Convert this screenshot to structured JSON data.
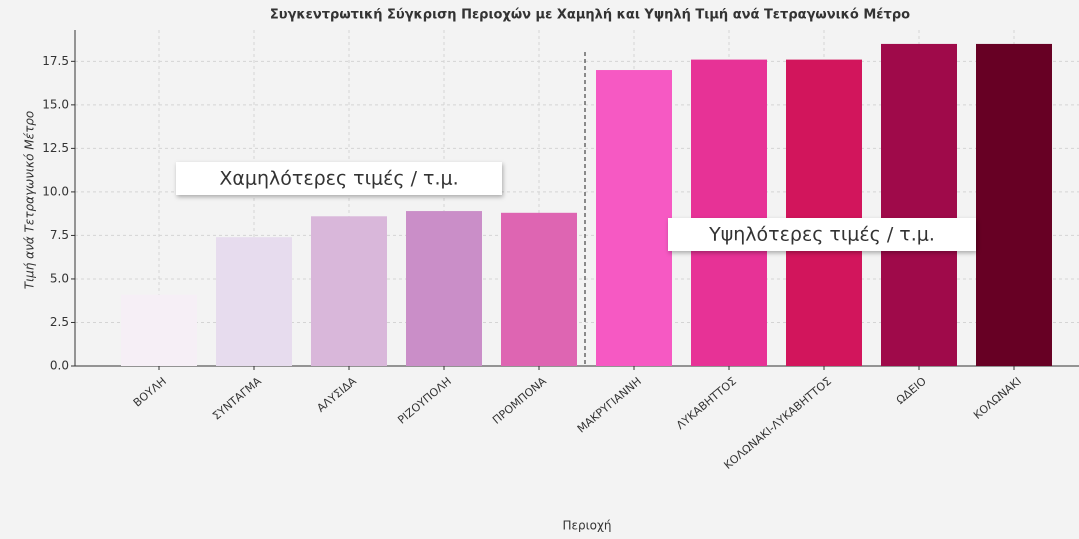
{
  "chart_data": {
    "type": "bar",
    "title": "Συγκεντρωτική Σύγκριση Περιοχών με Χαμηλή και Υψηλή Τιμή ανά Τετραγωνικό Μέτρο",
    "x_label": "Περιοχή",
    "y_label": "Τιμή ανά Τετραγωνικό Μέτρο",
    "categories": [
      "ΒΟΥΛΗ",
      "ΣΥΝΤΑΓΜΑ",
      "ΑΛΥΣΙΔΑ",
      "ΡΙΖΟΥΠΟΛΗ",
      "ΠΡΟΜΠΟΝΑ",
      "ΜΑΚΡΥΓΙΑΝΝΗ",
      "ΛΥΚΑΒΗΤΤΟΣ",
      "ΚΟΛΩΝΑΚΙ-ΛΥΚΑΒΗΤΤΟΣ",
      "ΩΔΕΙΟ",
      "ΚΟΛΩΝΑΚΙ"
    ],
    "values": [
      4.1,
      7.4,
      8.6,
      8.9,
      8.8,
      17.0,
      17.6,
      17.6,
      18.5,
      18.5
    ],
    "colors": [
      "#f6eff6",
      "#e7dcee",
      "#d9b7da",
      "#ca8ec8",
      "#de65b2",
      "#f659c3",
      "#e73296",
      "#d2155c",
      "#9f0a4a",
      "#670024"
    ],
    "ylim": [
      0,
      19.3
    ],
    "yticks": [
      {
        "value": 0,
        "label": "0.0"
      },
      {
        "value": 2.5,
        "label": "2.5"
      },
      {
        "value": 5,
        "label": "5.0"
      },
      {
        "value": 7.5,
        "label": "7.5"
      },
      {
        "value": 10,
        "label": "10.0"
      },
      {
        "value": 12.5,
        "label": "12.5"
      },
      {
        "value": 15,
        "label": "15.0"
      },
      {
        "value": 17.5,
        "label": "17.5"
      }
    ],
    "grid": true,
    "annotations": [
      "Χαμηλότερες τιμές / τ.μ.",
      "Υψηλότερες τιμές / τ.μ."
    ]
  }
}
